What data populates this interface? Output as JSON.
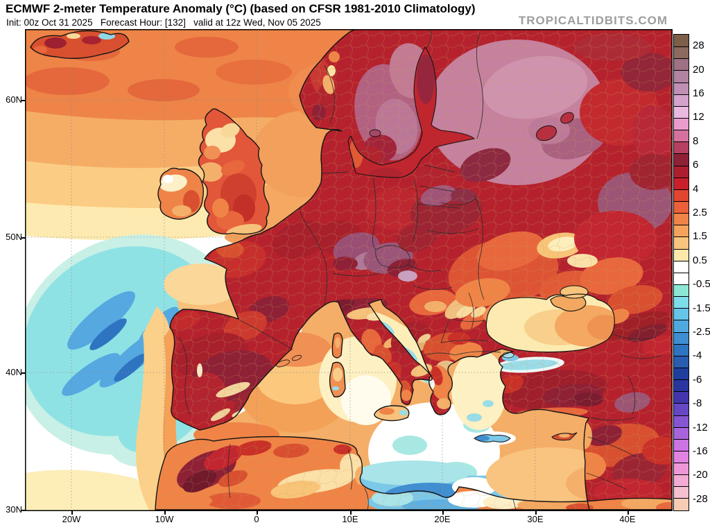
{
  "header": {
    "title": "ECMWF 2-meter Temperature Anomaly (°C) (based on CFSR 1981-2010 Climatology)",
    "subtitle": "Init: 00z Oct 31 2025   Forecast Hour: [132]   valid at 12z Wed, Nov 05 2025",
    "watermark": "TROPICALTIDBITS.COM"
  },
  "map": {
    "lat_labels": [
      "60N",
      "50N",
      "40N",
      "30N"
    ],
    "lon_labels": [
      "20W",
      "10W",
      "0",
      "10E",
      "20E",
      "30E",
      "40E"
    ]
  },
  "colorbar": {
    "unit": "°C",
    "tick_labels": [
      "28",
      "20",
      "16",
      "12",
      "8",
      "6",
      "4",
      "2.5",
      "1.5",
      "0.5",
      "-0.5",
      "-1.5",
      "-2.5",
      "-4",
      "-6",
      "-8",
      "-12",
      "-16",
      "-20",
      "-28"
    ],
    "segment_colors": [
      "#7d5e48",
      "#8d6a5e",
      "#9e7183",
      "#b083a2",
      "#bf8fb4",
      "#d4a3cc",
      "#eab9e0",
      "#ea9cce",
      "#d4719f",
      "#b54060",
      "#8e2136",
      "#ad1f2f",
      "#c9202b",
      "#e1452f",
      "#ea6038",
      "#f08448",
      "#f5a35c",
      "#f9c47e",
      "#fde8ac",
      "#ffffff",
      "#ffffff",
      "#8ce8d4",
      "#7eddea",
      "#66c4e8",
      "#4fa9e0",
      "#3f8ed2",
      "#2f74c0",
      "#2a5cb0",
      "#1f3f9e",
      "#2a35a0",
      "#4336ac",
      "#6647c4",
      "#8655d2",
      "#a964dc",
      "#cc74e4",
      "#e184e0",
      "#ee97d8",
      "#f2abd4",
      "#f5c0d0",
      "#f6cdb4"
    ]
  },
  "map_summary": {
    "model": "ECMWF",
    "variable": "2-meter Temperature Anomaly",
    "unit": "°C",
    "climatology": "CFSR 1981-2010",
    "init": "00z Oct 31 2025",
    "forecast_hour": "[132]",
    "valid": "12z Wed, Nov 05 2025",
    "region_anomalies": [
      {
        "region": "Finland / Northwest Russia",
        "anomaly_c": "+8 to +12"
      },
      {
        "region": "Scandinavia / Baltic",
        "anomaly_c": "+4 to +10"
      },
      {
        "region": "Central and Eastern Europe",
        "anomaly_c": "+4 to +8"
      },
      {
        "region": "Iberia and Morocco interior",
        "anomaly_c": "+4 to +8"
      },
      {
        "region": "Turkey / Anatolia / Caucasus",
        "anomaly_c": "+4 to +8"
      },
      {
        "region": "British Isles",
        "anomaly_c": "+2 to +5"
      },
      {
        "region": "Ukraine / Black Sea",
        "anomaly_c": "+1 to +4"
      },
      {
        "region": "Central Mediterranean / Adriatic",
        "anomaly_c": "-0.5 to +1.5"
      },
      {
        "region": "Atlantic southwest of Iberia",
        "anomaly_c": "-1 to -4"
      },
      {
        "region": "Libya coast / south-central Mediterranean",
        "anomaly_c": "-1 to -4"
      }
    ]
  }
}
